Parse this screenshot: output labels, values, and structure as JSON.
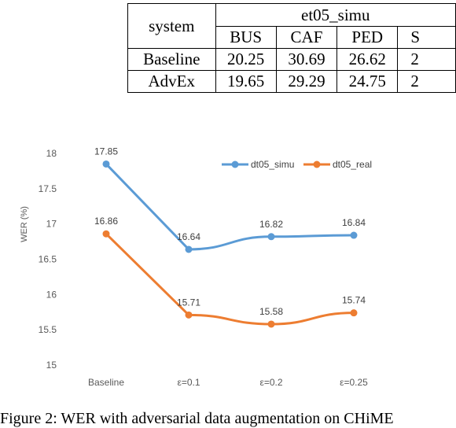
{
  "table": {
    "system_header": "system",
    "group_header": "et05_simu",
    "columns": [
      "BUS",
      "CAF",
      "PED",
      "S"
    ],
    "rows": [
      {
        "name": "Baseline",
        "values": [
          "20.25",
          "30.69",
          "26.62",
          "2"
        ]
      },
      {
        "name": "AdvEx",
        "values": [
          "19.65",
          "29.29",
          "24.75",
          "2"
        ]
      }
    ]
  },
  "chart_data": {
    "type": "line",
    "categories": [
      "Baseline",
      "ε=0.1",
      "ε=0.2",
      "ε=0.25"
    ],
    "ylabel": "WER (%)",
    "ylim": [
      15,
      18
    ],
    "yticks": [
      "15",
      "15.5",
      "16",
      "16.5",
      "17",
      "17.5",
      "18"
    ],
    "grid": false,
    "legend_position": "top-right",
    "series": [
      {
        "name": "dt05_simu",
        "color": "#5b9bd5",
        "values": [
          17.85,
          16.64,
          16.82,
          16.84
        ],
        "labels": [
          "17.85",
          "16.64",
          "16.82",
          "16.84"
        ]
      },
      {
        "name": "dt05_real",
        "color": "#ed7d31",
        "values": [
          16.86,
          15.71,
          15.58,
          15.74
        ],
        "labels": [
          "16.86",
          "15.71",
          "15.58",
          "15.74"
        ]
      }
    ]
  },
  "caption": "Figure 2: WER with adversarial data augmentation on CHiME"
}
